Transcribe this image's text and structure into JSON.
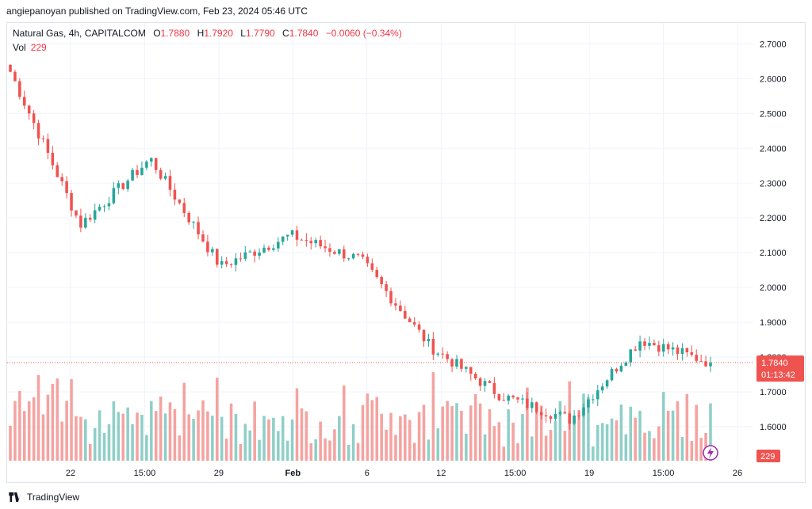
{
  "header": {
    "publisher_line": "angiepanoyan published on TradingView.com, Feb 23, 2024 05:46 UTC"
  },
  "legend": {
    "symbol": "Natural Gas, 4h, CAPITALCOM",
    "open": "1.7880",
    "high": "1.7920",
    "low": "1.7790",
    "close": "1.7840",
    "change": "−0.0060 (−0.34%)",
    "vol_label": "Vol",
    "vol_value": "229"
  },
  "footer": {
    "brand": "TradingView"
  },
  "colors": {
    "up": "#26a69a",
    "down": "#ef5350",
    "up_vol": "#8fcfc8",
    "down_vol": "#f4a3a1",
    "last_price_bg": "#ef5350",
    "grid": "#f0f3fa"
  },
  "chart_data": {
    "type": "candlestick",
    "title": "Natural Gas, 4h, CAPITALCOM",
    "ylim": [
      1.5,
      2.76
    ],
    "y_ticks": [
      "2.7000",
      "2.6000",
      "2.5000",
      "2.4000",
      "2.3000",
      "2.2000",
      "2.1000",
      "2.0000",
      "1.9000",
      "1.8000",
      "1.7000",
      "1.6000"
    ],
    "x_ticks": [
      "22",
      "15:00",
      "29",
      "Feb",
      "6",
      "12",
      "15:00",
      "19",
      "15:00",
      "26"
    ],
    "last_price": "1.7840",
    "countdown": "01:13:42",
    "last_volume": "229",
    "key_points": [
      {
        "label": "start",
        "price": 2.62
      },
      {
        "label": "22",
        "price": 2.18
      },
      {
        "label": "15:00",
        "price": 2.37
      },
      {
        "label": "29",
        "price": 2.06
      },
      {
        "label": "Feb",
        "price": 2.15
      },
      {
        "label": "6",
        "price": 2.08
      },
      {
        "label": "12",
        "price": 1.83
      },
      {
        "label": "15:00",
        "price": 1.69
      },
      {
        "label": "19",
        "price": 1.62
      },
      {
        "label": "15:00",
        "price": 1.85
      },
      {
        "label": "last",
        "price": 1.784
      }
    ]
  }
}
